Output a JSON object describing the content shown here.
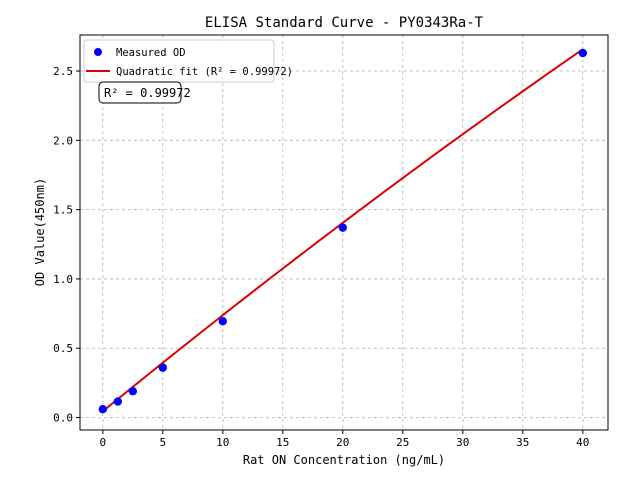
{
  "chart_data": {
    "type": "scatter",
    "title": "ELISA Standard Curve - PY0343Ra-T",
    "xlabel": "Rat ON Concentration (ng/mL)",
    "ylabel": "OD Value(450nm)",
    "xlim": [
      -1.9,
      42.1
    ],
    "ylim": [
      -0.09,
      2.76
    ],
    "xticks": [
      0,
      5,
      10,
      15,
      20,
      25,
      30,
      35,
      40
    ],
    "yticks": [
      0.0,
      0.5,
      1.0,
      1.5,
      2.0,
      2.5
    ],
    "xtick_labels": [
      "0",
      "5",
      "10",
      "15",
      "20",
      "25",
      "30",
      "35",
      "40"
    ],
    "ytick_labels": [
      "0.0",
      "0.5",
      "1.0",
      "1.5",
      "2.0",
      "2.5"
    ],
    "grid": true,
    "legend_position": "top-left",
    "series": [
      {
        "name": "Measured OD",
        "kind": "points",
        "color": "#0000ff",
        "x": [
          0,
          1.25,
          2.5,
          5,
          10,
          20,
          40
        ],
        "y": [
          0.06,
          0.115,
          0.19,
          0.36,
          0.695,
          1.37,
          2.63
        ]
      },
      {
        "name": "Quadratic fit (R² = 0.99972)",
        "kind": "line",
        "color": "#dd0000",
        "coefficients": {
          "a": -0.000135,
          "b": 0.0707,
          "c": 0.045
        }
      }
    ],
    "annotation": "R² = 0.99972"
  }
}
